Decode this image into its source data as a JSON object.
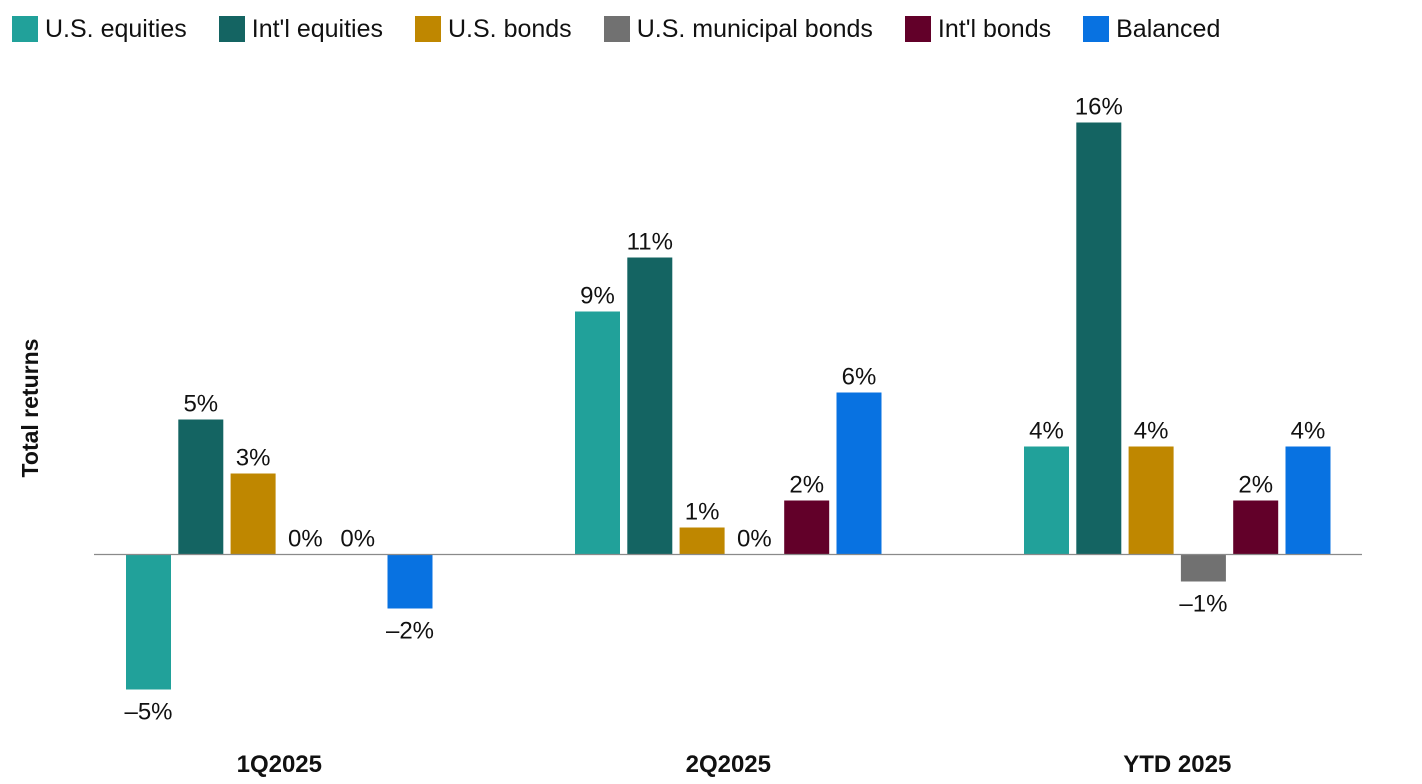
{
  "chart_data": {
    "type": "bar",
    "title": "",
    "xlabel": "",
    "ylabel": "Total returns",
    "ylim": [
      -6,
      17
    ],
    "grid": false,
    "legend_position": "top",
    "categories": [
      "1Q2025",
      "2Q2025",
      "YTD 2025"
    ],
    "series": [
      {
        "name": "U.S. equities",
        "color": "#21a19a",
        "values": [
          -5,
          9,
          4
        ],
        "labels": [
          "–5%",
          "9%",
          "4%"
        ]
      },
      {
        "name": "Int'l equities",
        "color": "#146462",
        "values": [
          5,
          11,
          16
        ],
        "labels": [
          "5%",
          "11%",
          "16%"
        ]
      },
      {
        "name": "U.S. bonds",
        "color": "#bf8700",
        "values": [
          3,
          1,
          4
        ],
        "labels": [
          "3%",
          "1%",
          "4%"
        ]
      },
      {
        "name": "U.S. municipal bonds",
        "color": "#717171",
        "values": [
          0,
          0,
          -1
        ],
        "labels": [
          "0%",
          "0%",
          "–1%"
        ]
      },
      {
        "name": "Int'l bonds",
        "color": "#620029",
        "values": [
          0,
          2,
          2
        ],
        "labels": [
          "0%",
          "2%",
          "2%"
        ]
      },
      {
        "name": "Balanced",
        "color": "#0872e1",
        "values": [
          -2,
          6,
          4
        ],
        "labels": [
          "–2%",
          "6%",
          "4%"
        ]
      }
    ]
  }
}
